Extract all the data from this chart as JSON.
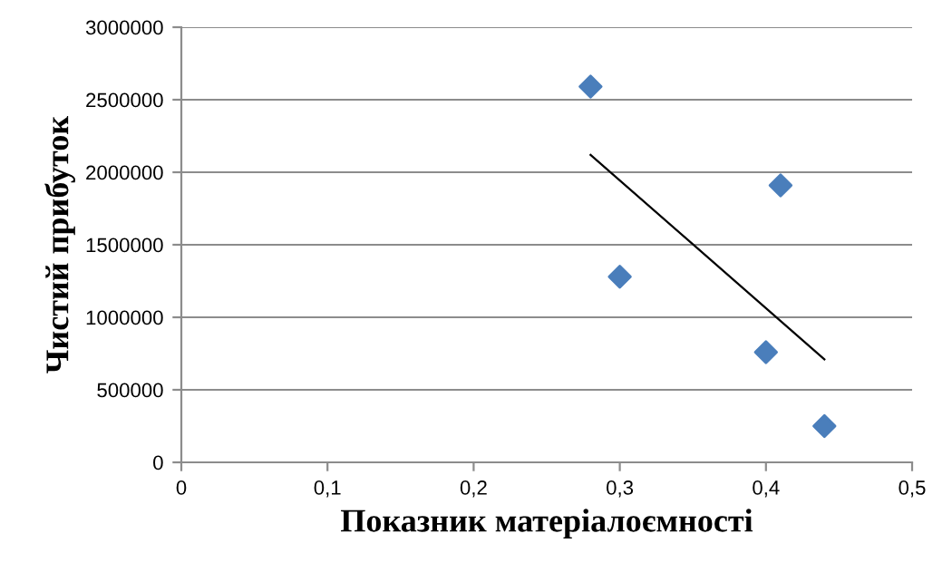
{
  "chart_data": {
    "type": "scatter",
    "xlabel": "Показник матеріалоємності",
    "ylabel": "Чистий прибуток",
    "series": [
      {
        "color": "#4a7ebb",
        "marker": "diamond",
        "x": [
          0.28,
          0.41,
          0.3,
          0.4,
          0.44
        ],
        "values": [
          2590000,
          1910000,
          1280000,
          760000,
          250000
        ]
      },
      {
        "type": "line",
        "color": "#000000",
        "marker": "none",
        "x": [
          0.28,
          0.44
        ],
        "values": [
          2120000,
          710000
        ]
      }
    ],
    "xlim": [
      0,
      0.5
    ],
    "xticks": [
      {
        "value": 0,
        "label": "0"
      },
      {
        "value": 0.1,
        "label": "0,1"
      },
      {
        "value": 0.2,
        "label": "0,2"
      },
      {
        "value": 0.3,
        "label": "0,3"
      },
      {
        "value": 0.4,
        "label": "0,4"
      },
      {
        "value": 0.5,
        "label": "0,5"
      }
    ],
    "ylim": [
      0,
      3000000
    ],
    "yticks": [
      0,
      500000,
      1000000,
      1500000,
      2000000,
      2500000,
      3000000
    ],
    "grid": "y",
    "legend": false
  }
}
